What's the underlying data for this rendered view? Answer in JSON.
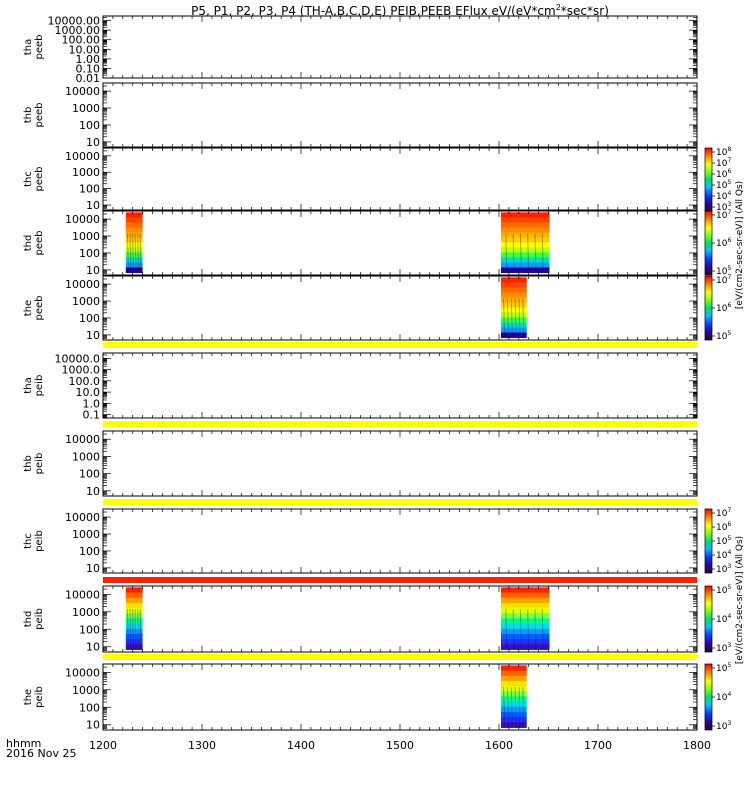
{
  "title": "P5, P1, P2, P3, P4 (TH-A,B,C,D,E) PEIB,PEEB EFlux eV/(eV*cm",
  "title_sup": "2",
  "title_tail": "*sec*sr)",
  "footer": {
    "time_label": "hhmm",
    "date_label": "2016 Nov 25"
  },
  "x_ticks": [
    "1200",
    "1300",
    "1400",
    "1500",
    "1600",
    "1700",
    "1800"
  ],
  "panels": [
    {
      "label": [
        "tha",
        "peeb"
      ],
      "yticks": [
        "10000.00",
        "1000.00",
        "100.00",
        "10.00",
        "1.00",
        "0.10",
        "0.01"
      ]
    },
    {
      "label": [
        "thb",
        "peeb"
      ],
      "yticks": [
        "10000",
        "1000",
        "100",
        "10"
      ]
    },
    {
      "label": [
        "thc",
        "peeb"
      ],
      "yticks": [
        "10000",
        "1000",
        "100",
        "10"
      ]
    },
    {
      "label": [
        "thd",
        "peeb"
      ],
      "yticks": [
        "10000",
        "1000",
        "100",
        "10"
      ]
    },
    {
      "label": [
        "the",
        "peeb"
      ],
      "yticks": [
        "10000",
        "1000",
        "100",
        "10"
      ]
    },
    {
      "label": [
        "tha",
        "peib"
      ],
      "yticks": [
        "10000.0",
        "1000.0",
        "100.0",
        "10.0",
        "1.0",
        "0.1"
      ]
    },
    {
      "label": [
        "thb",
        "peib"
      ],
      "yticks": [
        "10000",
        "1000",
        "100",
        "10"
      ]
    },
    {
      "label": [
        "thc",
        "peib"
      ],
      "yticks": [
        "10000",
        "1000",
        "100",
        "10"
      ]
    },
    {
      "label": [
        "thd",
        "peib"
      ],
      "yticks": [
        "10000",
        "1000",
        "100",
        "10"
      ]
    },
    {
      "label": [
        "the",
        "peib"
      ],
      "yticks": [
        "10000",
        "1000",
        "100",
        "10"
      ]
    }
  ],
  "colorbars": [
    {
      "ticks": [
        {
          "b": "10",
          "e": "8"
        },
        {
          "b": "10",
          "e": "7"
        },
        {
          "b": "10",
          "e": "6"
        },
        {
          "b": "10",
          "e": "5"
        },
        {
          "b": "10",
          "e": "4"
        },
        {
          "b": "10",
          "e": "3"
        }
      ]
    },
    {
      "ticks": [
        {
          "b": "10",
          "e": "7"
        },
        {
          "b": "10",
          "e": "6"
        },
        {
          "b": "10",
          "e": "5"
        }
      ]
    },
    {
      "ticks": [
        {
          "b": "10",
          "e": "7"
        },
        {
          "b": "10",
          "e": "6"
        },
        {
          "b": "10",
          "e": "5"
        }
      ]
    },
    {
      "ticks": [
        {
          "b": "10",
          "e": "7"
        },
        {
          "b": "10",
          "e": "6"
        },
        {
          "b": "10",
          "e": "5"
        },
        {
          "b": "10",
          "e": "4"
        },
        {
          "b": "10",
          "e": "3"
        }
      ]
    },
    {
      "ticks": [
        {
          "b": "10",
          "e": "5"
        },
        {
          "b": "10",
          "e": "4"
        },
        {
          "b": "10",
          "e": "3"
        }
      ]
    },
    {
      "ticks": [
        {
          "b": "10",
          "e": "5"
        },
        {
          "b": "10",
          "e": "4"
        },
        {
          "b": "10",
          "e": "3"
        }
      ]
    }
  ],
  "colorbar_labels": [
    "[eV/(cm2-sec-sr-eV)] (All Qs)",
    "[eV/(cm2-sec-sr-eV)] (All Qs)"
  ],
  "chart_data": {
    "type": "heatmap",
    "title": "P5, P1, P2, P3, P4 (TH-A,B,C,D,E) PEIB,PEEB EFlux eV/(eV*cm2*sec*sr)",
    "xlabel": "hhmm 2016 Nov 25",
    "xlim": [
      1200,
      1800
    ],
    "y_scale": "log",
    "ylabel_units": "eV",
    "color_scale": "log",
    "colorbar_label": "[eV/(cm2-sec-sr-eV)] (All Qs)",
    "panels": [
      {
        "name": "tha peeb",
        "ylim": [
          0.01,
          30000
        ],
        "segments": []
      },
      {
        "name": "thb peeb",
        "ylim": [
          5,
          30000
        ],
        "segments": []
      },
      {
        "name": "thc peeb",
        "ylim": [
          5,
          30000
        ],
        "segments": []
      },
      {
        "name": "thd peeb",
        "ylim": [
          5,
          30000
        ],
        "segments": [
          {
            "x_start": 1223,
            "x_end": 1240,
            "y_start": 7,
            "y_end": 25000,
            "colorscale": "warm"
          },
          {
            "x_start": 1602,
            "x_end": 1651,
            "y_start": 7,
            "y_end": 25000,
            "colorscale": "warm"
          }
        ]
      },
      {
        "name": "the peeb",
        "ylim": [
          5,
          30000
        ],
        "segments": [
          {
            "x_start": 1602,
            "x_end": 1628,
            "y_start": 7,
            "y_end": 25000,
            "colorscale": "warm"
          }
        ]
      },
      {
        "name": "tha peib",
        "ylim": [
          0.05,
          30000
        ],
        "segments": []
      },
      {
        "name": "thb peib",
        "ylim": [
          5,
          30000
        ],
        "segments": []
      },
      {
        "name": "thc peib",
        "ylim": [
          5,
          30000
        ],
        "segments": []
      },
      {
        "name": "thd peib",
        "ylim": [
          5,
          30000
        ],
        "segments": [
          {
            "x_start": 1223,
            "x_end": 1240,
            "y_start": 7,
            "y_end": 25000,
            "colorscale": "wide"
          },
          {
            "x_start": 1602,
            "x_end": 1651,
            "y_start": 7,
            "y_end": 25000,
            "colorscale": "wide"
          }
        ]
      },
      {
        "name": "the peib",
        "ylim": [
          5,
          30000
        ],
        "segments": [
          {
            "x_start": 1602,
            "x_end": 1628,
            "y_start": 7,
            "y_end": 25000,
            "colorscale": "wide"
          }
        ]
      }
    ],
    "separator_bars": [
      {
        "after_panel": "the peeb",
        "color": "#ffff00"
      },
      {
        "after_panel": "tha peib",
        "color": "#ffff00"
      },
      {
        "after_panel": "thb peib",
        "color": "#ffff00"
      },
      {
        "after_panel": "thc peib",
        "color": "#ff2000"
      },
      {
        "after_panel": "thd peib",
        "color": "#ffff00"
      }
    ]
  }
}
